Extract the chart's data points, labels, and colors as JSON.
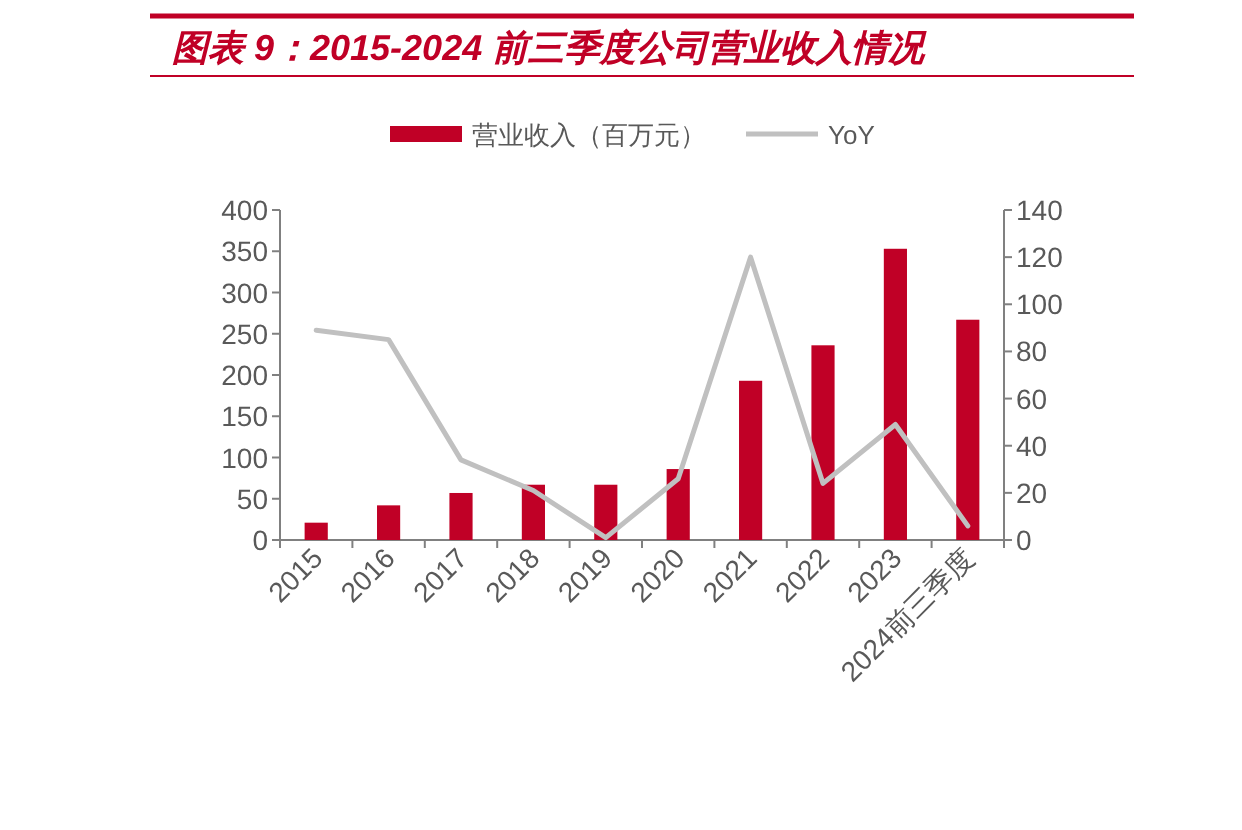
{
  "chart_data": {
    "type": "bar",
    "title": "图表 9：2015-2024 前三季度公司营业收入情况",
    "categories": [
      "2015",
      "2016",
      "2017",
      "2018",
      "2019",
      "2020",
      "2021",
      "2022",
      "2023",
      "2024前三季度"
    ],
    "series": [
      {
        "name": "营业收入（百万元）",
        "color": "#c00026",
        "values": [
          21,
          42,
          57,
          67,
          67,
          86,
          193,
          236,
          353,
          267
        ]
      },
      {
        "name": "YoY",
        "type": "line",
        "axis": "y2",
        "color": "#c0c0c0",
        "values": [
          89,
          85,
          34,
          21,
          1,
          26,
          120,
          24,
          49,
          6
        ]
      }
    ],
    "ylim": [
      0,
      400
    ],
    "yticks": [
      0,
      50,
      100,
      150,
      200,
      250,
      300,
      350,
      400
    ],
    "y2lim": [
      0,
      140
    ],
    "y2ticks": [
      0,
      20,
      40,
      60,
      80,
      100,
      120,
      140
    ],
    "grid": false,
    "legend": "top"
  }
}
